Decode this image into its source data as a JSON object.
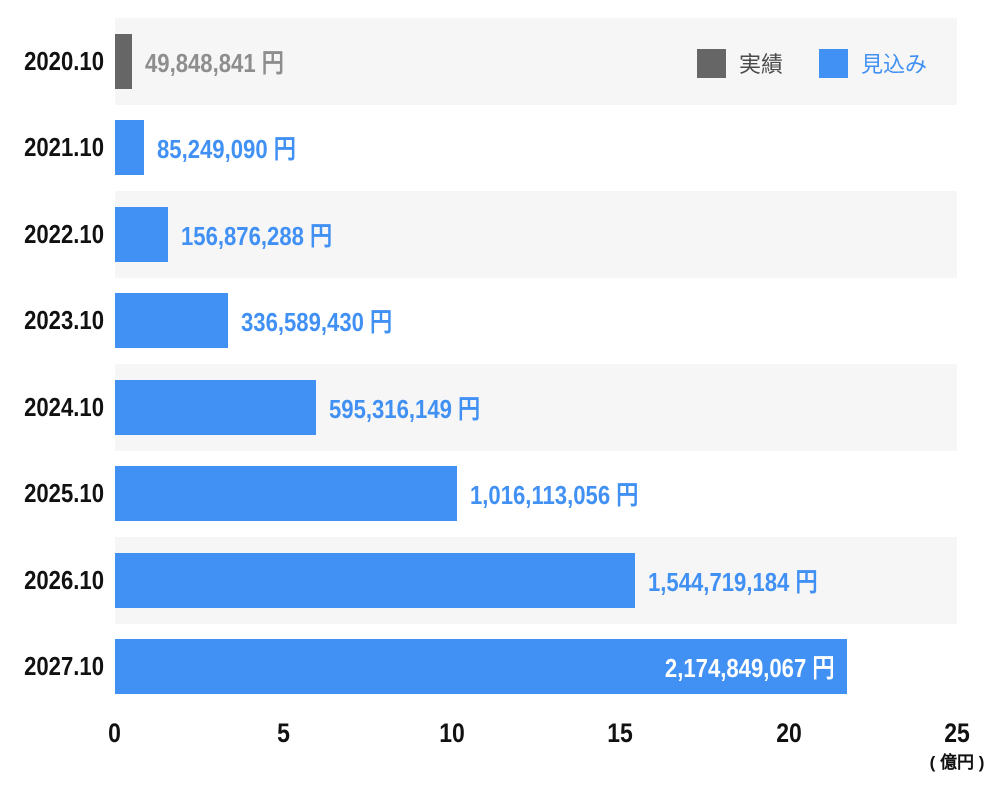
{
  "chart_data": {
    "type": "bar",
    "orientation": "horizontal",
    "value_unit": "円",
    "axis_unit_divisor": 100000000,
    "categories": [
      "2020.10",
      "2021.10",
      "2022.10",
      "2023.10",
      "2024.10",
      "2025.10",
      "2026.10",
      "2027.10"
    ],
    "bars": [
      {
        "category": "2020.10",
        "series": "実績",
        "value": 49848841,
        "display": "49,848,841 円",
        "striped": true,
        "label_position": "outside",
        "label_color": "#8E8E8E",
        "bar_color": "#666666"
      },
      {
        "category": "2021.10",
        "series": "見込み",
        "value": 85249090,
        "display": "85,249,090 円",
        "striped": false,
        "label_position": "outside",
        "label_color": "#4190F4",
        "bar_color": "#4190F4"
      },
      {
        "category": "2022.10",
        "series": "見込み",
        "value": 156876288,
        "display": "156,876,288 円",
        "striped": true,
        "label_position": "outside",
        "label_color": "#4190F4",
        "bar_color": "#4190F4"
      },
      {
        "category": "2023.10",
        "series": "見込み",
        "value": 336589430,
        "display": "336,589,430 円",
        "striped": false,
        "label_position": "outside",
        "label_color": "#4190F4",
        "bar_color": "#4190F4"
      },
      {
        "category": "2024.10",
        "series": "見込み",
        "value": 595316149,
        "display": "595,316,149 円",
        "striped": true,
        "label_position": "outside",
        "label_color": "#4190F4",
        "bar_color": "#4190F4"
      },
      {
        "category": "2025.10",
        "series": "見込み",
        "value": 1016113056,
        "display": "1,016,113,056 円",
        "striped": false,
        "label_position": "outside",
        "label_color": "#4190F4",
        "bar_color": "#4190F4"
      },
      {
        "category": "2026.10",
        "series": "見込み",
        "value": 1544719184,
        "display": "1,544,719,184 円",
        "striped": true,
        "label_position": "outside",
        "label_color": "#4190F4",
        "bar_color": "#4190F4"
      },
      {
        "category": "2027.10",
        "series": "見込み",
        "value": 2174849067,
        "display": "2,174,849,067 円",
        "striped": false,
        "label_position": "inside",
        "label_color": "#FFFFFF",
        "bar_color": "#4190F4"
      }
    ],
    "x_axis": {
      "ticks": [
        0,
        5,
        10,
        15,
        20,
        25
      ],
      "max": 25,
      "unit_label": "( 億円 )"
    },
    "legend": [
      {
        "label": "実績",
        "color": "#666666",
        "text_color": "#4A4A4A"
      },
      {
        "label": "見込み",
        "color": "#4190F4",
        "text_color": "#4190F4"
      }
    ]
  },
  "colors": {
    "stripe": "#F6F6F6",
    "category_text": "#111111",
    "axis_text": "#111111",
    "background": "#FFFFFF"
  }
}
